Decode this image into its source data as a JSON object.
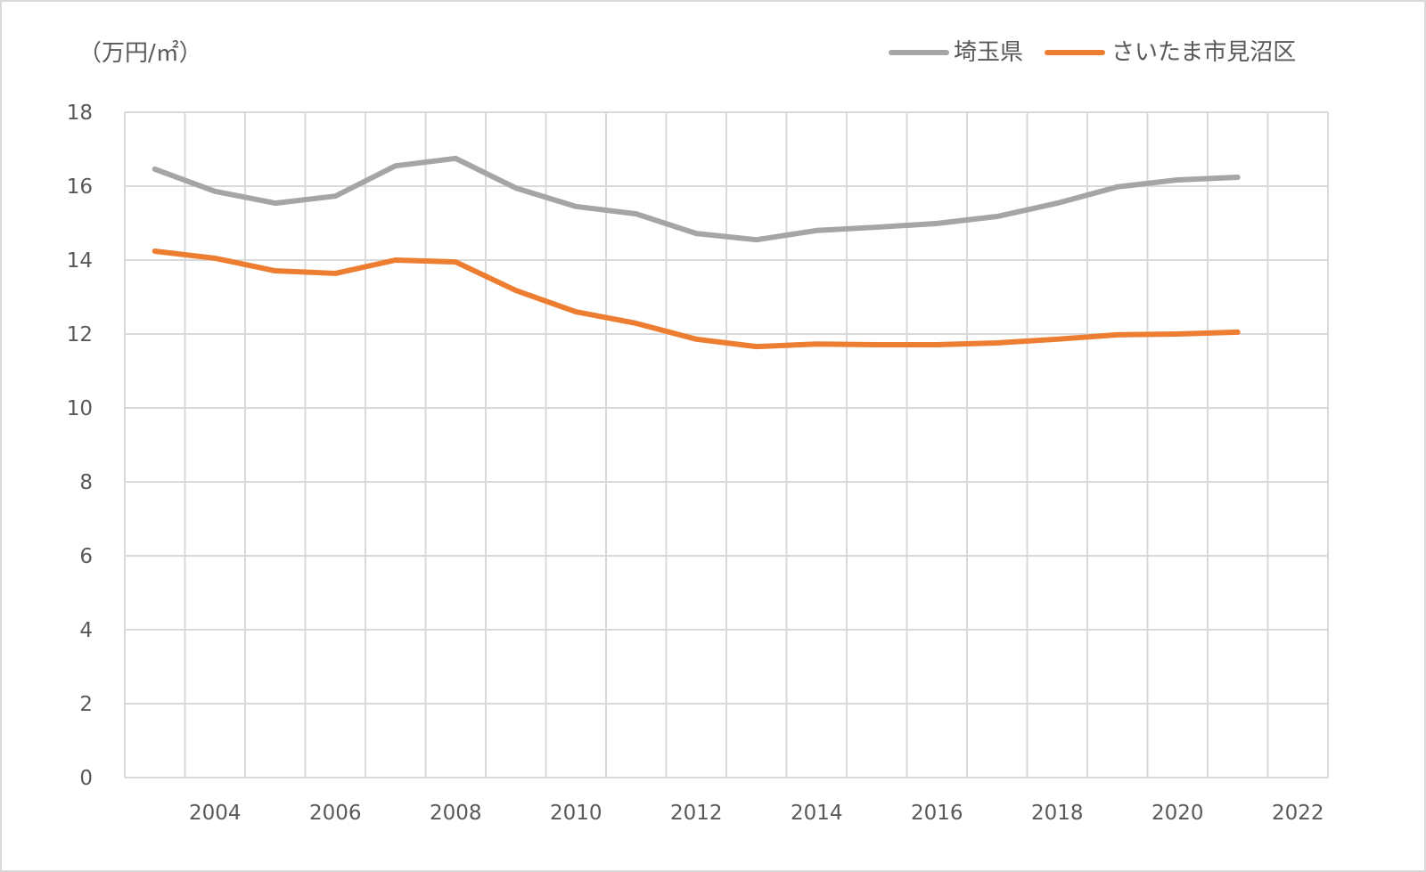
{
  "chart_data": {
    "type": "line",
    "unit_label": "（万円/㎡）",
    "x": [
      2003,
      2004,
      2005,
      2006,
      2007,
      2008,
      2009,
      2010,
      2011,
      2012,
      2013,
      2014,
      2015,
      2016,
      2017,
      2018,
      2019,
      2020,
      2021
    ],
    "x_categories": [
      2003,
      2004,
      2005,
      2006,
      2007,
      2008,
      2009,
      2010,
      2011,
      2012,
      2013,
      2014,
      2015,
      2016,
      2017,
      2018,
      2019,
      2020,
      2021,
      2022
    ],
    "x_tick_labels": [
      "2004",
      "2006",
      "2008",
      "2010",
      "2012",
      "2014",
      "2016",
      "2018",
      "2020",
      "2022"
    ],
    "y_ticks": [
      0,
      2,
      4,
      6,
      8,
      10,
      12,
      14,
      16,
      18
    ],
    "ylim": [
      0,
      18
    ],
    "grid": true,
    "legend_position": "top-right",
    "series": [
      {
        "name": "埼玉県",
        "color": "#A5A5A5",
        "values": [
          16.46,
          15.86,
          15.54,
          15.73,
          16.55,
          16.75,
          15.95,
          15.45,
          15.25,
          14.72,
          14.55,
          14.8,
          14.89,
          14.99,
          15.18,
          15.54,
          15.98,
          16.17,
          16.24
        ]
      },
      {
        "name": "さいたま市見沼区",
        "color": "#ED7D31",
        "values": [
          14.24,
          14.05,
          13.71,
          13.64,
          14.0,
          13.95,
          13.18,
          12.6,
          12.29,
          11.86,
          11.66,
          11.73,
          11.71,
          11.71,
          11.76,
          11.86,
          11.98,
          12.0,
          12.05
        ]
      }
    ]
  }
}
